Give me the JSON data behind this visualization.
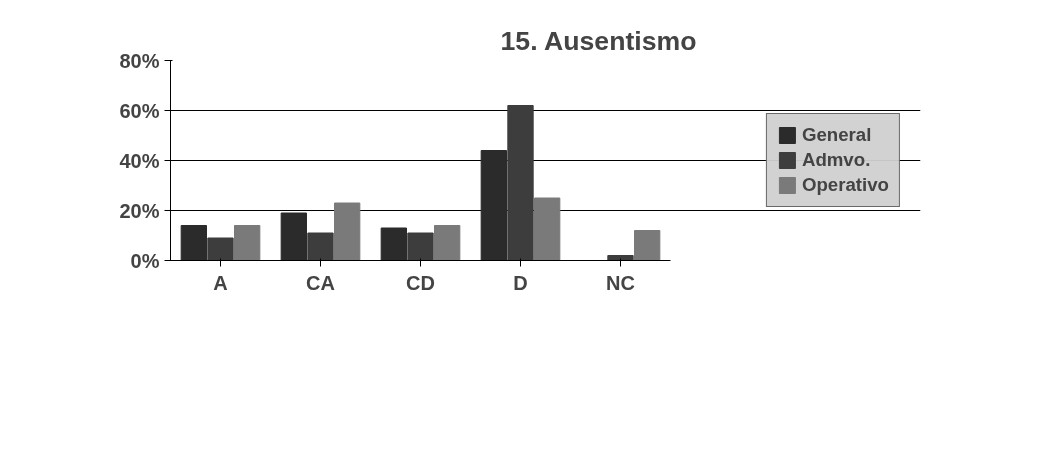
{
  "chart_data": {
    "type": "bar",
    "title": "15. Ausentismo",
    "categories": [
      "A",
      "CA",
      "CD",
      "D",
      "NC"
    ],
    "series": [
      {
        "name": "General",
        "color": "#2b2b2b",
        "values": [
          14,
          19,
          13,
          44,
          0
        ]
      },
      {
        "name": "Admvo.",
        "color": "#3d3d3d",
        "values": [
          9,
          11,
          11,
          62,
          2
        ]
      },
      {
        "name": "Operativo",
        "color": "#7a7a7a",
        "values": [
          14,
          23,
          14,
          25,
          12
        ]
      }
    ],
    "ylim": [
      0,
      80
    ],
    "yticks": [
      {
        "value": 0,
        "label": "0%"
      },
      {
        "value": 20,
        "label": "20%"
      },
      {
        "value": 40,
        "label": "40%"
      },
      {
        "value": 60,
        "label": "60%"
      },
      {
        "value": 80,
        "label": "80%"
      }
    ],
    "grid": "y",
    "legend": "right"
  }
}
